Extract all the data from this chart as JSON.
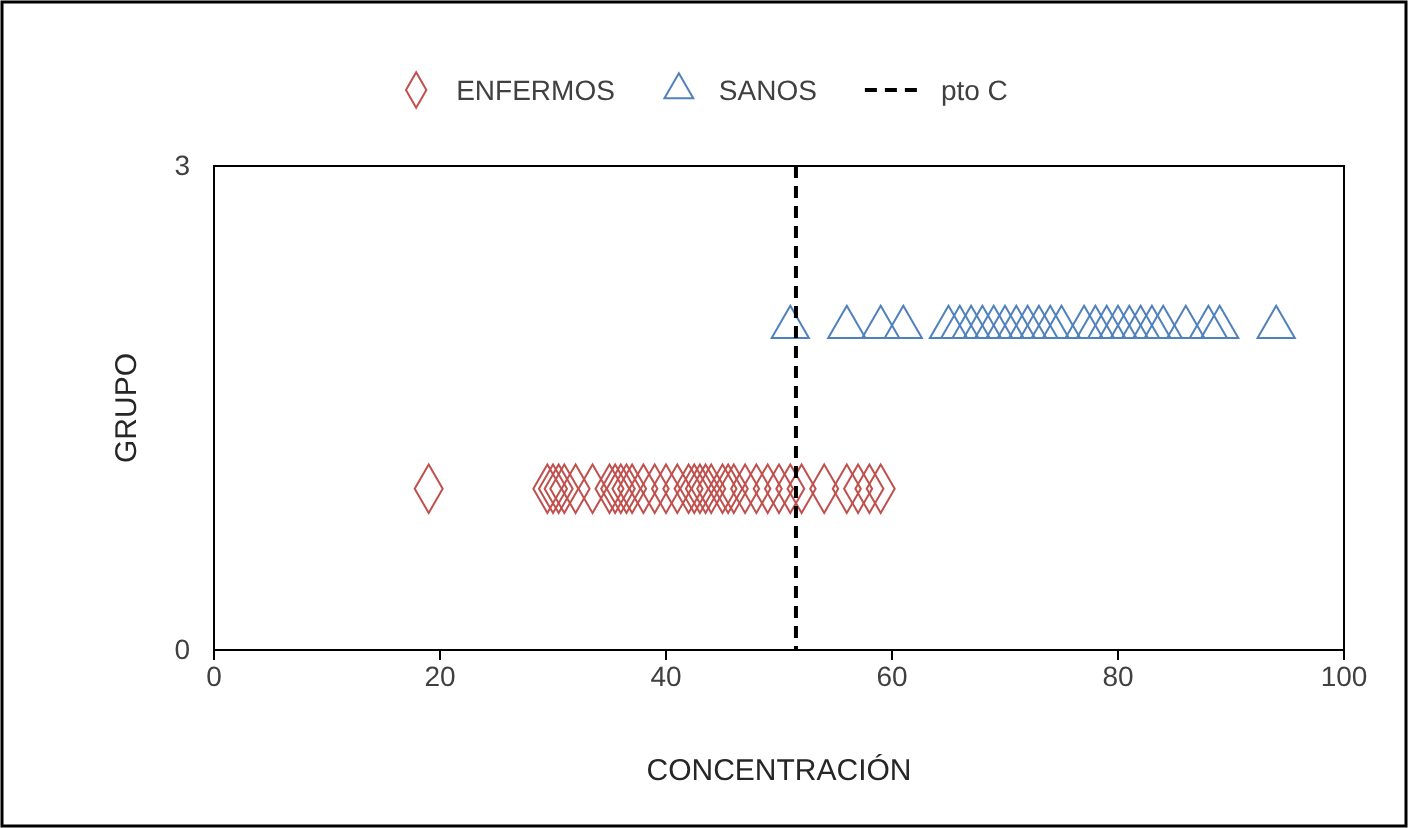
{
  "chart_data": {
    "type": "scatter",
    "xlabel": "CONCENTRACIÓN",
    "ylabel": "GRUPO",
    "xlim": [
      0,
      100
    ],
    "xticks": [
      0,
      20,
      40,
      60,
      80,
      100
    ],
    "ylim": [
      0,
      3
    ],
    "yticks": [
      0,
      3
    ],
    "grid": false,
    "legend": "top",
    "series": [
      {
        "name": "ENFERMOS",
        "color": "#c0504d",
        "marker": "diamond",
        "x": [
          19,
          29.5,
          30,
          30.5,
          31,
          32,
          33.5,
          35,
          35.5,
          36,
          36.5,
          37,
          38,
          39,
          40,
          41,
          42,
          42.5,
          43,
          43.5,
          44,
          45,
          45.5,
          46,
          47,
          48,
          49,
          50,
          51,
          52,
          54,
          56,
          57,
          58,
          59
        ],
        "values": [
          1,
          1,
          1,
          1,
          1,
          1,
          1,
          1,
          1,
          1,
          1,
          1,
          1,
          1,
          1,
          1,
          1,
          1,
          1,
          1,
          1,
          1,
          1,
          1,
          1,
          1,
          1,
          1,
          1,
          1,
          1,
          1,
          1,
          1,
          1
        ]
      },
      {
        "name": "SANOS",
        "color": "#4f81bd",
        "marker": "triangle",
        "x": [
          51,
          56,
          59,
          61,
          65,
          66,
          67,
          68,
          69,
          70,
          71,
          72,
          73,
          74,
          75,
          77,
          78,
          79,
          80,
          81,
          82,
          83,
          84,
          86,
          88,
          89,
          94
        ],
        "values": [
          2,
          2,
          2,
          2,
          2,
          2,
          2,
          2,
          2,
          2,
          2,
          2,
          2,
          2,
          2,
          2,
          2,
          2,
          2,
          2,
          2,
          2,
          2,
          2,
          2,
          2,
          2
        ]
      }
    ],
    "ref_lines": [
      {
        "axis": "x",
        "value": 51.5,
        "label": "pto C",
        "color": "#000000",
        "line_style": "dashed"
      }
    ]
  }
}
